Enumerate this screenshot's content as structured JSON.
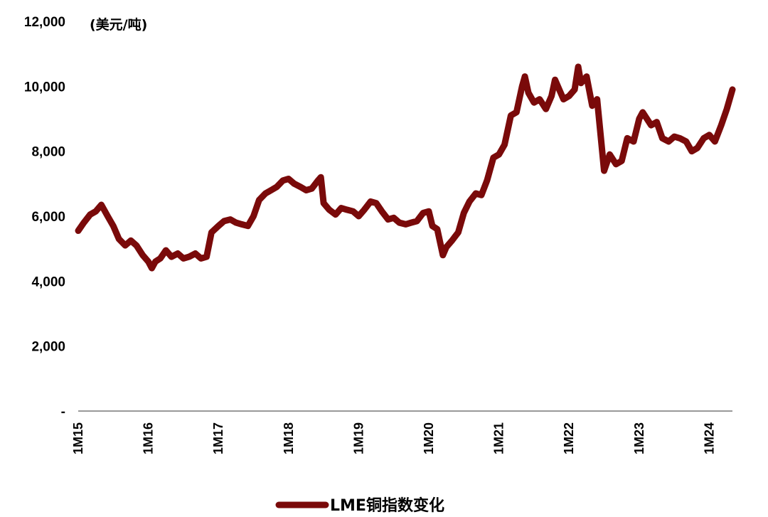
{
  "chart_data": {
    "type": "line",
    "title": "",
    "unit_label": "(美元/吨)",
    "xlabel": "",
    "ylabel": "",
    "ylim": [
      0,
      12000
    ],
    "y_ticks": [
      0,
      2000,
      4000,
      6000,
      8000,
      10000,
      12000
    ],
    "y_tick_labels": [
      "-",
      "2,000",
      "4,000",
      "6,000",
      "8,000",
      "10,000",
      "12,000"
    ],
    "x_tick_labels": [
      "1M15",
      "1M16",
      "1M17",
      "1M18",
      "1M19",
      "1M20",
      "1M21",
      "1M22",
      "1M23",
      "1M24"
    ],
    "x_range": [
      2015.0,
      2024.33
    ],
    "grid": false,
    "legend_position": "bottom",
    "series": [
      {
        "name": "LME铜指数变化",
        "color": "#7a0a0a",
        "points": [
          [
            2015.0,
            5550
          ],
          [
            2015.08,
            5800
          ],
          [
            2015.17,
            6050
          ],
          [
            2015.25,
            6150
          ],
          [
            2015.33,
            6350
          ],
          [
            2015.42,
            6000
          ],
          [
            2015.5,
            5700
          ],
          [
            2015.58,
            5300
          ],
          [
            2015.67,
            5100
          ],
          [
            2015.75,
            5250
          ],
          [
            2015.83,
            5100
          ],
          [
            2015.92,
            4800
          ],
          [
            2016.0,
            4600
          ],
          [
            2016.05,
            4400
          ],
          [
            2016.1,
            4600
          ],
          [
            2016.17,
            4700
          ],
          [
            2016.25,
            4950
          ],
          [
            2016.33,
            4750
          ],
          [
            2016.42,
            4850
          ],
          [
            2016.5,
            4700
          ],
          [
            2016.58,
            4750
          ],
          [
            2016.67,
            4850
          ],
          [
            2016.75,
            4700
          ],
          [
            2016.83,
            4750
          ],
          [
            2016.9,
            5500
          ],
          [
            2017.0,
            5700
          ],
          [
            2017.08,
            5850
          ],
          [
            2017.17,
            5900
          ],
          [
            2017.25,
            5800
          ],
          [
            2017.33,
            5750
          ],
          [
            2017.42,
            5700
          ],
          [
            2017.5,
            6000
          ],
          [
            2017.58,
            6500
          ],
          [
            2017.67,
            6700
          ],
          [
            2017.75,
            6800
          ],
          [
            2017.83,
            6900
          ],
          [
            2017.92,
            7100
          ],
          [
            2018.0,
            7150
          ],
          [
            2018.08,
            7000
          ],
          [
            2018.17,
            6900
          ],
          [
            2018.25,
            6800
          ],
          [
            2018.33,
            6850
          ],
          [
            2018.42,
            7100
          ],
          [
            2018.46,
            7200
          ],
          [
            2018.5,
            6400
          ],
          [
            2018.58,
            6200
          ],
          [
            2018.67,
            6050
          ],
          [
            2018.75,
            6250
          ],
          [
            2018.83,
            6200
          ],
          [
            2018.92,
            6150
          ],
          [
            2019.0,
            6000
          ],
          [
            2019.08,
            6200
          ],
          [
            2019.17,
            6450
          ],
          [
            2019.25,
            6400
          ],
          [
            2019.33,
            6150
          ],
          [
            2019.42,
            5900
          ],
          [
            2019.5,
            5950
          ],
          [
            2019.58,
            5800
          ],
          [
            2019.67,
            5750
          ],
          [
            2019.75,
            5800
          ],
          [
            2019.83,
            5850
          ],
          [
            2019.92,
            6100
          ],
          [
            2020.0,
            6150
          ],
          [
            2020.05,
            5700
          ],
          [
            2020.12,
            5600
          ],
          [
            2020.2,
            4800
          ],
          [
            2020.25,
            5050
          ],
          [
            2020.33,
            5250
          ],
          [
            2020.42,
            5500
          ],
          [
            2020.5,
            6100
          ],
          [
            2020.58,
            6450
          ],
          [
            2020.67,
            6700
          ],
          [
            2020.75,
            6650
          ],
          [
            2020.83,
            7100
          ],
          [
            2020.92,
            7800
          ],
          [
            2021.0,
            7900
          ],
          [
            2021.08,
            8200
          ],
          [
            2021.17,
            9100
          ],
          [
            2021.25,
            9200
          ],
          [
            2021.33,
            10000
          ],
          [
            2021.37,
            10300
          ],
          [
            2021.42,
            9800
          ],
          [
            2021.5,
            9500
          ],
          [
            2021.58,
            9600
          ],
          [
            2021.67,
            9300
          ],
          [
            2021.75,
            9700
          ],
          [
            2021.8,
            10200
          ],
          [
            2021.92,
            9600
          ],
          [
            2022.0,
            9700
          ],
          [
            2022.08,
            9900
          ],
          [
            2022.13,
            10600
          ],
          [
            2022.17,
            10100
          ],
          [
            2022.25,
            10300
          ],
          [
            2022.33,
            9400
          ],
          [
            2022.4,
            9600
          ],
          [
            2022.45,
            8500
          ],
          [
            2022.5,
            7400
          ],
          [
            2022.58,
            7900
          ],
          [
            2022.67,
            7600
          ],
          [
            2022.75,
            7700
          ],
          [
            2022.83,
            8400
          ],
          [
            2022.92,
            8300
          ],
          [
            2023.0,
            9000
          ],
          [
            2023.05,
            9200
          ],
          [
            2023.17,
            8800
          ],
          [
            2023.25,
            8900
          ],
          [
            2023.33,
            8400
          ],
          [
            2023.42,
            8300
          ],
          [
            2023.5,
            8450
          ],
          [
            2023.58,
            8400
          ],
          [
            2023.67,
            8300
          ],
          [
            2023.75,
            8000
          ],
          [
            2023.83,
            8100
          ],
          [
            2023.92,
            8400
          ],
          [
            2024.0,
            8500
          ],
          [
            2024.08,
            8300
          ],
          [
            2024.17,
            8800
          ],
          [
            2024.25,
            9300
          ],
          [
            2024.33,
            9900
          ]
        ]
      }
    ]
  }
}
